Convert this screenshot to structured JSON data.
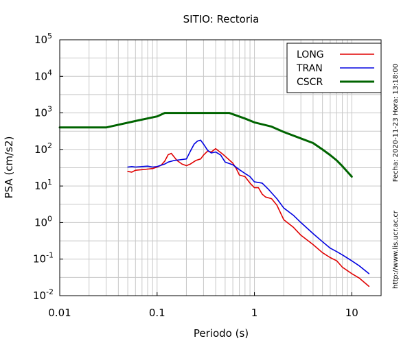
{
  "chart_data": {
    "type": "line",
    "title": "SITIO: Rectoria",
    "xlabel": "Periodo (s)",
    "ylabel": "PSA (cm/s2)",
    "xscale": "log",
    "yscale": "log",
    "xlim": [
      0.01,
      20
    ],
    "ylim": [
      0.01,
      100000
    ],
    "grid": true,
    "legend_position": "top-right",
    "x_ticks": [
      {
        "value": 0.01,
        "label": "0.01"
      },
      {
        "value": 0.1,
        "label": "0.1"
      },
      {
        "value": 1,
        "label": "1"
      },
      {
        "value": 10,
        "label": "10"
      }
    ],
    "y_ticks": [
      {
        "value": 0.01,
        "base": "10",
        "exp": "-2"
      },
      {
        "value": 0.1,
        "base": "10",
        "exp": "-1"
      },
      {
        "value": 1,
        "base": "10",
        "exp": "0"
      },
      {
        "value": 10,
        "base": "10",
        "exp": "1"
      },
      {
        "value": 100,
        "base": "10",
        "exp": "2"
      },
      {
        "value": 1000,
        "base": "10",
        "exp": "3"
      },
      {
        "value": 10000,
        "base": "10",
        "exp": "4"
      },
      {
        "value": 100000,
        "base": "10",
        "exp": "5"
      }
    ],
    "series": [
      {
        "name": "LONG",
        "color": "#e00000",
        "x": [
          0.05,
          0.055,
          0.06,
          0.07,
          0.08,
          0.09,
          0.1,
          0.11,
          0.12,
          0.13,
          0.14,
          0.15,
          0.16,
          0.18,
          0.2,
          0.22,
          0.25,
          0.28,
          0.3,
          0.33,
          0.36,
          0.4,
          0.43,
          0.47,
          0.5,
          0.55,
          0.6,
          0.65,
          0.7,
          0.8,
          0.9,
          1.0,
          1.1,
          1.2,
          1.3,
          1.5,
          1.7,
          2.0,
          2.5,
          3.0,
          4.0,
          5.0,
          6.0,
          7.0,
          8.0,
          10.0,
          12.0,
          15.0
        ],
        "y": [
          25,
          24,
          27,
          28,
          29,
          30,
          33,
          37,
          48,
          72,
          78,
          62,
          50,
          40,
          36,
          40,
          50,
          55,
          70,
          90,
          85,
          105,
          90,
          75,
          65,
          52,
          42,
          30,
          20,
          18,
          12,
          9,
          9,
          6,
          5,
          4.5,
          3,
          1.2,
          0.75,
          0.45,
          0.25,
          0.15,
          0.11,
          0.09,
          0.06,
          0.04,
          0.03,
          0.018
        ]
      },
      {
        "name": "TRAN",
        "color": "#0000e0",
        "x": [
          0.05,
          0.055,
          0.06,
          0.07,
          0.08,
          0.09,
          0.1,
          0.11,
          0.12,
          0.13,
          0.15,
          0.17,
          0.2,
          0.22,
          0.24,
          0.26,
          0.28,
          0.3,
          0.33,
          0.36,
          0.4,
          0.45,
          0.5,
          0.6,
          0.7,
          0.8,
          0.9,
          1.0,
          1.2,
          1.4,
          1.5,
          1.7,
          2.0,
          2.5,
          3.0,
          4.0,
          5.0,
          6.0,
          7.0,
          8.0,
          10.0,
          12.0,
          15.0
        ],
        "y": [
          33,
          34,
          33,
          34,
          35,
          33,
          34,
          37,
          40,
          45,
          50,
          52,
          55,
          90,
          140,
          170,
          180,
          140,
          95,
          80,
          85,
          70,
          45,
          38,
          28,
          22,
          18,
          13,
          12,
          8,
          6.5,
          4.5,
          2.5,
          1.6,
          1.0,
          0.5,
          0.3,
          0.2,
          0.16,
          0.13,
          0.09,
          0.065,
          0.04
        ]
      },
      {
        "name": "CSCR",
        "color": "#006400",
        "x": [
          0.01,
          0.03,
          0.06,
          0.1,
          0.12,
          0.2,
          0.3,
          0.55,
          0.8,
          1.0,
          1.5,
          2.0,
          3.0,
          4.0,
          5.0,
          6.0,
          7.0,
          8.0,
          10.0
        ],
        "y": [
          400,
          400,
          600,
          800,
          1000,
          1000,
          1000,
          1000,
          700,
          550,
          420,
          300,
          200,
          150,
          100,
          70,
          50,
          35,
          18
        ]
      }
    ]
  },
  "side_texts": {
    "date": "Fecha: 2020-11-23  Hora: 13:18:00",
    "url": "http://www.lis.ucr.ac.cr"
  }
}
